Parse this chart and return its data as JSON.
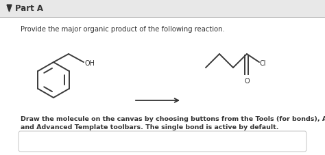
{
  "bg_color": "#ffffff",
  "header_bg": "#e8e8e8",
  "content_bg": "#ffffff",
  "part_a_text": "Part A",
  "instruction_text": "Provide the major organic product of the following reaction.",
  "footer_text1": "Draw the molecule on the canvas by choosing buttons from the Tools (for bonds), Atoms,",
  "footer_text2": "and Advanced Template toolbars. The single bond is active by default.",
  "text_color": "#333333",
  "line_color": "#3a3a3a",
  "arrow_color": "#333333",
  "border_color": "#cccccc",
  "header_border": "#bbbbbb",
  "fig_bg": "#e0e0e0"
}
